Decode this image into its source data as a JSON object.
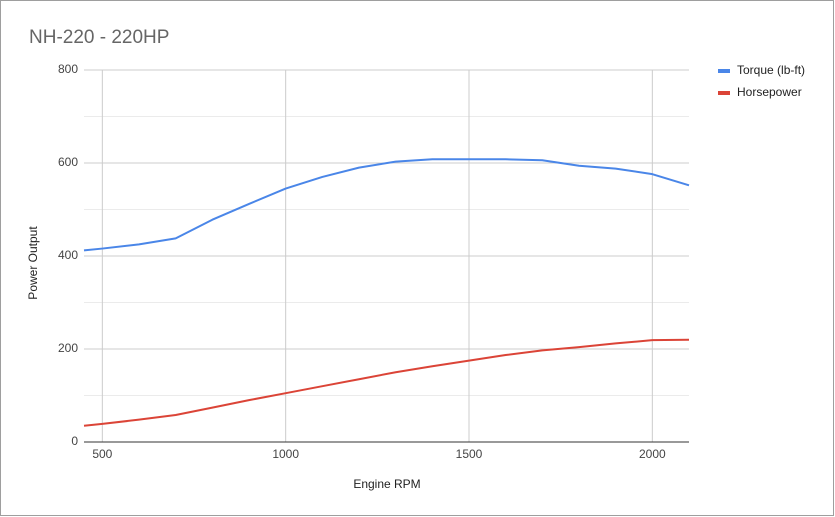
{
  "chart_data": {
    "type": "line",
    "title": "NH-220 - 220HP",
    "x_label": "Engine RPM",
    "y_label": "Power Output",
    "x": [
      450,
      500,
      600,
      700,
      800,
      900,
      1000,
      1100,
      1200,
      1300,
      1400,
      1500,
      1600,
      1700,
      1800,
      1900,
      2000,
      2100
    ],
    "series": [
      {
        "name": "Torque (lb-ft)",
        "color": "#4a86e8",
        "values": [
          412,
          416,
          425,
          438,
          478,
          512,
          545,
          570,
          590,
          603,
          608,
          608,
          608,
          606,
          594,
          588,
          576,
          552
        ]
      },
      {
        "name": "Horsepower",
        "color": "#db4437",
        "values": [
          35,
          39,
          48,
          58,
          74,
          90,
          105,
          120,
          135,
          150,
          163,
          175,
          187,
          197,
          204,
          212,
          219,
          220
        ]
      }
    ],
    "xlim": [
      450,
      2100
    ],
    "xticks": [
      500,
      1000,
      1500,
      2000
    ],
    "ylim": [
      0,
      800
    ],
    "yticks": [
      0,
      200,
      400,
      600,
      800
    ],
    "grid": true,
    "legend": "right"
  }
}
